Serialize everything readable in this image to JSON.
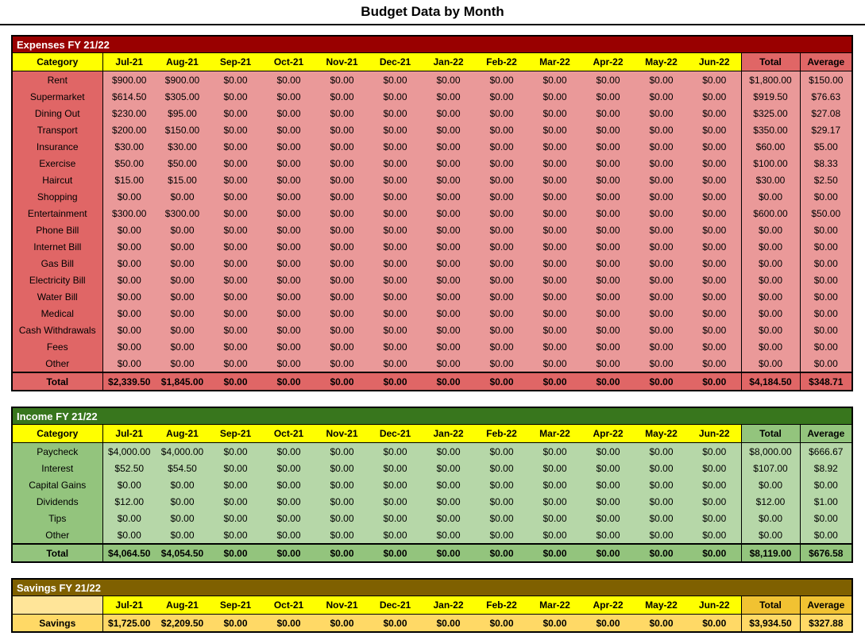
{
  "page_title": "Budget Data by Month",
  "months": [
    "Jul-21",
    "Aug-21",
    "Sep-21",
    "Oct-21",
    "Nov-21",
    "Dec-21",
    "Jan-22",
    "Feb-22",
    "Mar-22",
    "Apr-22",
    "May-22",
    "Jun-22"
  ],
  "tables": [
    {
      "name": "expenses",
      "title": "Expenses FY 21/22",
      "category_header": "Category",
      "total_header": "Total",
      "average_header": "Average",
      "bold_rows": false,
      "colors": {
        "bar": "#990000",
        "bar_text": "#ffffff",
        "header_category_bg": "#ffff00",
        "month_header_bg": "#ffff00",
        "total_header_bg": "#e06666",
        "category_bg": "#e06666",
        "cell_bg": "#ea9999",
        "summary_bg": "#e06666"
      },
      "rows": [
        {
          "category": "Rent",
          "values": [
            "$900.00",
            "$900.00",
            "$0.00",
            "$0.00",
            "$0.00",
            "$0.00",
            "$0.00",
            "$0.00",
            "$0.00",
            "$0.00",
            "$0.00",
            "$0.00"
          ],
          "total": "$1,800.00",
          "average": "$150.00"
        },
        {
          "category": "Supermarket",
          "values": [
            "$614.50",
            "$305.00",
            "$0.00",
            "$0.00",
            "$0.00",
            "$0.00",
            "$0.00",
            "$0.00",
            "$0.00",
            "$0.00",
            "$0.00",
            "$0.00"
          ],
          "total": "$919.50",
          "average": "$76.63"
        },
        {
          "category": "Dining Out",
          "values": [
            "$230.00",
            "$95.00",
            "$0.00",
            "$0.00",
            "$0.00",
            "$0.00",
            "$0.00",
            "$0.00",
            "$0.00",
            "$0.00",
            "$0.00",
            "$0.00"
          ],
          "total": "$325.00",
          "average": "$27.08"
        },
        {
          "category": "Transport",
          "values": [
            "$200.00",
            "$150.00",
            "$0.00",
            "$0.00",
            "$0.00",
            "$0.00",
            "$0.00",
            "$0.00",
            "$0.00",
            "$0.00",
            "$0.00",
            "$0.00"
          ],
          "total": "$350.00",
          "average": "$29.17"
        },
        {
          "category": "Insurance",
          "values": [
            "$30.00",
            "$30.00",
            "$0.00",
            "$0.00",
            "$0.00",
            "$0.00",
            "$0.00",
            "$0.00",
            "$0.00",
            "$0.00",
            "$0.00",
            "$0.00"
          ],
          "total": "$60.00",
          "average": "$5.00"
        },
        {
          "category": "Exercise",
          "values": [
            "$50.00",
            "$50.00",
            "$0.00",
            "$0.00",
            "$0.00",
            "$0.00",
            "$0.00",
            "$0.00",
            "$0.00",
            "$0.00",
            "$0.00",
            "$0.00"
          ],
          "total": "$100.00",
          "average": "$8.33"
        },
        {
          "category": "Haircut",
          "values": [
            "$15.00",
            "$15.00",
            "$0.00",
            "$0.00",
            "$0.00",
            "$0.00",
            "$0.00",
            "$0.00",
            "$0.00",
            "$0.00",
            "$0.00",
            "$0.00"
          ],
          "total": "$30.00",
          "average": "$2.50"
        },
        {
          "category": "Shopping",
          "values": [
            "$0.00",
            "$0.00",
            "$0.00",
            "$0.00",
            "$0.00",
            "$0.00",
            "$0.00",
            "$0.00",
            "$0.00",
            "$0.00",
            "$0.00",
            "$0.00"
          ],
          "total": "$0.00",
          "average": "$0.00"
        },
        {
          "category": "Entertainment",
          "values": [
            "$300.00",
            "$300.00",
            "$0.00",
            "$0.00",
            "$0.00",
            "$0.00",
            "$0.00",
            "$0.00",
            "$0.00",
            "$0.00",
            "$0.00",
            "$0.00"
          ],
          "total": "$600.00",
          "average": "$50.00"
        },
        {
          "category": "Phone Bill",
          "values": [
            "$0.00",
            "$0.00",
            "$0.00",
            "$0.00",
            "$0.00",
            "$0.00",
            "$0.00",
            "$0.00",
            "$0.00",
            "$0.00",
            "$0.00",
            "$0.00"
          ],
          "total": "$0.00",
          "average": "$0.00"
        },
        {
          "category": "Internet Bill",
          "values": [
            "$0.00",
            "$0.00",
            "$0.00",
            "$0.00",
            "$0.00",
            "$0.00",
            "$0.00",
            "$0.00",
            "$0.00",
            "$0.00",
            "$0.00",
            "$0.00"
          ],
          "total": "$0.00",
          "average": "$0.00"
        },
        {
          "category": "Gas Bill",
          "values": [
            "$0.00",
            "$0.00",
            "$0.00",
            "$0.00",
            "$0.00",
            "$0.00",
            "$0.00",
            "$0.00",
            "$0.00",
            "$0.00",
            "$0.00",
            "$0.00"
          ],
          "total": "$0.00",
          "average": "$0.00"
        },
        {
          "category": "Electricity Bill",
          "values": [
            "$0.00",
            "$0.00",
            "$0.00",
            "$0.00",
            "$0.00",
            "$0.00",
            "$0.00",
            "$0.00",
            "$0.00",
            "$0.00",
            "$0.00",
            "$0.00"
          ],
          "total": "$0.00",
          "average": "$0.00"
        },
        {
          "category": "Water Bill",
          "values": [
            "$0.00",
            "$0.00",
            "$0.00",
            "$0.00",
            "$0.00",
            "$0.00",
            "$0.00",
            "$0.00",
            "$0.00",
            "$0.00",
            "$0.00",
            "$0.00"
          ],
          "total": "$0.00",
          "average": "$0.00"
        },
        {
          "category": "Medical",
          "values": [
            "$0.00",
            "$0.00",
            "$0.00",
            "$0.00",
            "$0.00",
            "$0.00",
            "$0.00",
            "$0.00",
            "$0.00",
            "$0.00",
            "$0.00",
            "$0.00"
          ],
          "total": "$0.00",
          "average": "$0.00"
        },
        {
          "category": "Cash Withdrawals",
          "values": [
            "$0.00",
            "$0.00",
            "$0.00",
            "$0.00",
            "$0.00",
            "$0.00",
            "$0.00",
            "$0.00",
            "$0.00",
            "$0.00",
            "$0.00",
            "$0.00"
          ],
          "total": "$0.00",
          "average": "$0.00"
        },
        {
          "category": "Fees",
          "values": [
            "$0.00",
            "$0.00",
            "$0.00",
            "$0.00",
            "$0.00",
            "$0.00",
            "$0.00",
            "$0.00",
            "$0.00",
            "$0.00",
            "$0.00",
            "$0.00"
          ],
          "total": "$0.00",
          "average": "$0.00"
        },
        {
          "category": "Other",
          "values": [
            "$0.00",
            "$0.00",
            "$0.00",
            "$0.00",
            "$0.00",
            "$0.00",
            "$0.00",
            "$0.00",
            "$0.00",
            "$0.00",
            "$0.00",
            "$0.00"
          ],
          "total": "$0.00",
          "average": "$0.00"
        }
      ],
      "summary_row": {
        "label": "Total",
        "values": [
          "$2,339.50",
          "$1,845.00",
          "$0.00",
          "$0.00",
          "$0.00",
          "$0.00",
          "$0.00",
          "$0.00",
          "$0.00",
          "$0.00",
          "$0.00",
          "$0.00"
        ],
        "total": "$4,184.50",
        "average": "$348.71"
      }
    },
    {
      "name": "income",
      "title": "Income FY 21/22",
      "category_header": "Category",
      "total_header": "Total",
      "average_header": "Average",
      "bold_rows": false,
      "colors": {
        "bar": "#38761d",
        "bar_text": "#ffffff",
        "header_category_bg": "#ffff00",
        "month_header_bg": "#ffff00",
        "total_header_bg": "#93c47d",
        "category_bg": "#93c47d",
        "cell_bg": "#b6d7a8",
        "summary_bg": "#93c47d"
      },
      "rows": [
        {
          "category": "Paycheck",
          "values": [
            "$4,000.00",
            "$4,000.00",
            "$0.00",
            "$0.00",
            "$0.00",
            "$0.00",
            "$0.00",
            "$0.00",
            "$0.00",
            "$0.00",
            "$0.00",
            "$0.00"
          ],
          "total": "$8,000.00",
          "average": "$666.67"
        },
        {
          "category": "Interest",
          "values": [
            "$52.50",
            "$54.50",
            "$0.00",
            "$0.00",
            "$0.00",
            "$0.00",
            "$0.00",
            "$0.00",
            "$0.00",
            "$0.00",
            "$0.00",
            "$0.00"
          ],
          "total": "$107.00",
          "average": "$8.92"
        },
        {
          "category": "Capital Gains",
          "values": [
            "$0.00",
            "$0.00",
            "$0.00",
            "$0.00",
            "$0.00",
            "$0.00",
            "$0.00",
            "$0.00",
            "$0.00",
            "$0.00",
            "$0.00",
            "$0.00"
          ],
          "total": "$0.00",
          "average": "$0.00"
        },
        {
          "category": "Dividends",
          "values": [
            "$12.00",
            "$0.00",
            "$0.00",
            "$0.00",
            "$0.00",
            "$0.00",
            "$0.00",
            "$0.00",
            "$0.00",
            "$0.00",
            "$0.00",
            "$0.00"
          ],
          "total": "$12.00",
          "average": "$1.00"
        },
        {
          "category": "Tips",
          "values": [
            "$0.00",
            "$0.00",
            "$0.00",
            "$0.00",
            "$0.00",
            "$0.00",
            "$0.00",
            "$0.00",
            "$0.00",
            "$0.00",
            "$0.00",
            "$0.00"
          ],
          "total": "$0.00",
          "average": "$0.00"
        },
        {
          "category": "Other",
          "values": [
            "$0.00",
            "$0.00",
            "$0.00",
            "$0.00",
            "$0.00",
            "$0.00",
            "$0.00",
            "$0.00",
            "$0.00",
            "$0.00",
            "$0.00",
            "$0.00"
          ],
          "total": "$0.00",
          "average": "$0.00"
        }
      ],
      "summary_row": {
        "label": "Total",
        "values": [
          "$4,064.50",
          "$4,054.50",
          "$0.00",
          "$0.00",
          "$0.00",
          "$0.00",
          "$0.00",
          "$0.00",
          "$0.00",
          "$0.00",
          "$0.00",
          "$0.00"
        ],
        "total": "$8,119.00",
        "average": "$676.58"
      }
    },
    {
      "name": "savings",
      "title": "Savings FY 21/22",
      "category_header": "",
      "total_header": "Total",
      "average_header": "Average",
      "bold_rows": true,
      "colors": {
        "bar": "#7f6000",
        "bar_text": "#ffffff",
        "header_category_bg": "#ffe599",
        "month_header_bg": "#ffff00",
        "total_header_bg": "#f1c232",
        "category_bg": "#ffd966",
        "cell_bg": "#ffd966",
        "summary_bg": "#ffd966"
      },
      "rows": [
        {
          "category": "Savings",
          "values": [
            "$1,725.00",
            "$2,209.50",
            "$0.00",
            "$0.00",
            "$0.00",
            "$0.00",
            "$0.00",
            "$0.00",
            "$0.00",
            "$0.00",
            "$0.00",
            "$0.00"
          ],
          "total": "$3,934.50",
          "average": "$327.88"
        }
      ],
      "summary_row": null
    }
  ]
}
